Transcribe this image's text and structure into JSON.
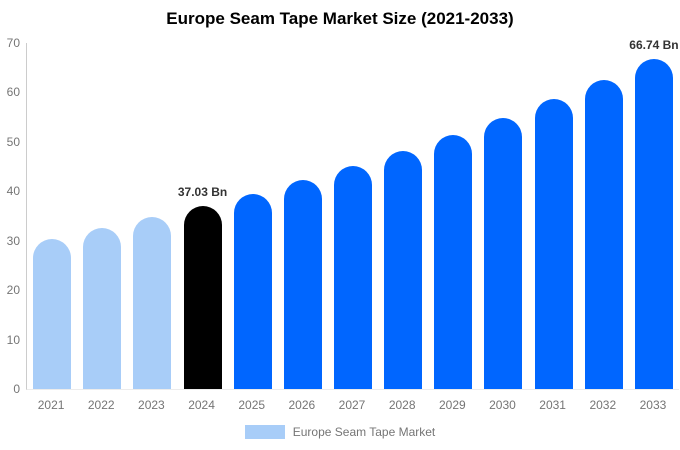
{
  "chart_data": {
    "type": "bar",
    "title": "Europe Seam Tape Market Size (2021-2033)",
    "xlabel": "",
    "ylabel": "",
    "ylim": [
      0,
      70
    ],
    "yticks": [
      0,
      10,
      20,
      30,
      40,
      50,
      60,
      70
    ],
    "grid": false,
    "categories": [
      "2021",
      "2022",
      "2023",
      "2024",
      "2025",
      "2026",
      "2027",
      "2028",
      "2029",
      "2030",
      "2031",
      "2032",
      "2033"
    ],
    "values": [
      30.4,
      32.5,
      34.7,
      37.03,
      39.5,
      42.2,
      45.1,
      48.1,
      51.4,
      54.9,
      58.6,
      62.5,
      66.74
    ],
    "bar_colors": [
      "#a8cdf8",
      "#a8cdf8",
      "#a8cdf8",
      "#000000",
      "#0066ff",
      "#0066ff",
      "#0066ff",
      "#0066ff",
      "#0066ff",
      "#0066ff",
      "#0066ff",
      "#0066ff",
      "#0066ff"
    ],
    "annotations": [
      {
        "category": "2024",
        "text": "37.03 Bn"
      },
      {
        "category": "2033",
        "text": "66.74 Bn"
      }
    ],
    "legend": {
      "position": "bottom",
      "label": "Europe Seam Tape Market",
      "swatch_color": "#a8cdf8"
    },
    "colors": {
      "series_light": "#a8cdf8",
      "series_highlight": "#0066ff",
      "series_current": "#000000",
      "axis_line": "#cccccc",
      "tick_text": "#757575",
      "annotation_text": "#333333",
      "title_text": "#000000",
      "background": "#ffffff"
    }
  }
}
